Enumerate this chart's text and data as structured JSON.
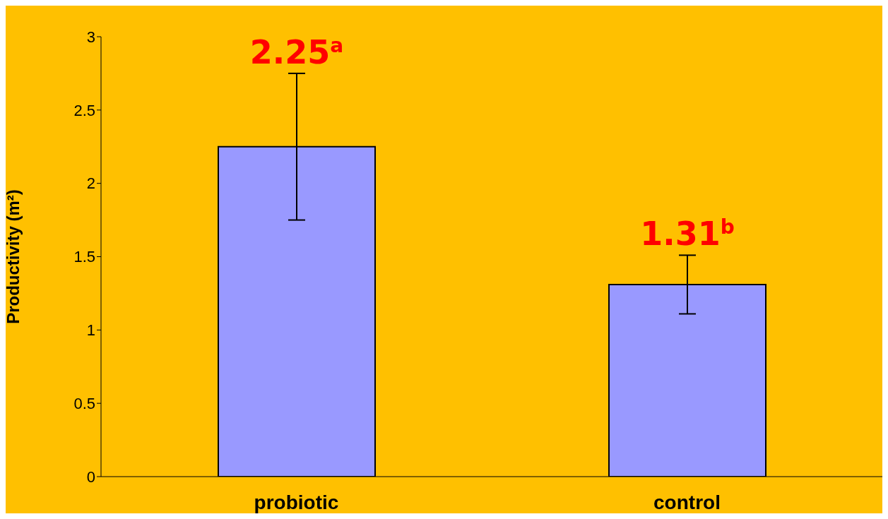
{
  "chart_data": {
    "type": "bar",
    "ylabel": "Productivity  (m²)",
    "categories": [
      "probiotic",
      "control"
    ],
    "values": [
      2.25,
      1.31
    ],
    "color": "#9999ff",
    "errors": [
      0.5,
      0.2
    ],
    "value_labels": [
      "2.25$^{a}$",
      "1.31$^{b}$"
    ],
    "ylim": [
      0,
      3
    ],
    "yticks": [
      0,
      0.5,
      1,
      1.5,
      2,
      2.5,
      3
    ],
    "grid": false,
    "legend": false
  }
}
